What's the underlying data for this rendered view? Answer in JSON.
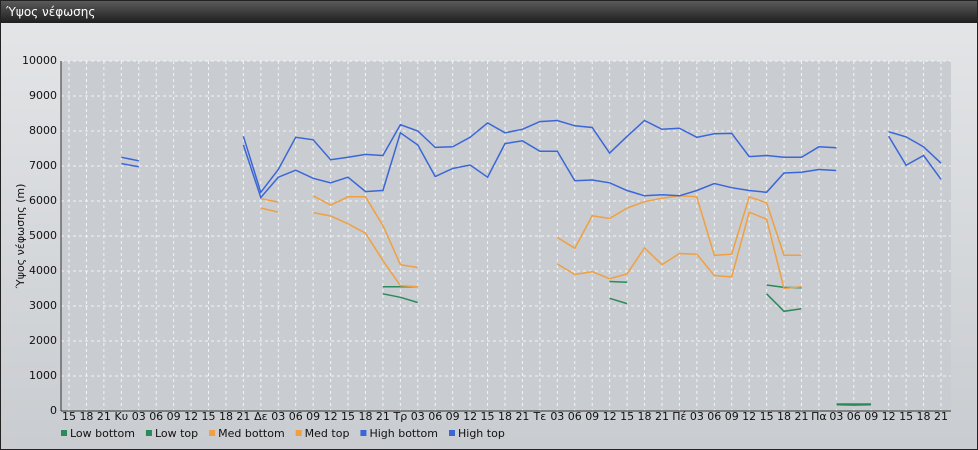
{
  "chart_data": {
    "type": "line",
    "title": "Ύψος νέφωσης",
    "y_label": "Ύψος νέφωσης (m)",
    "categories": [
      "15",
      "18",
      "21",
      "Κυ",
      "03",
      "06",
      "09",
      "12",
      "15",
      "18",
      "21",
      "Δε",
      "03",
      "06",
      "09",
      "12",
      "15",
      "18",
      "21",
      "Τρ",
      "03",
      "06",
      "09",
      "12",
      "15",
      "18",
      "21",
      "Τε",
      "03",
      "06",
      "09",
      "12",
      "15",
      "18",
      "21",
      "Πέ",
      "03",
      "06",
      "09",
      "12",
      "15",
      "18",
      "21",
      "Πα",
      "03",
      "06",
      "09",
      "12",
      "15",
      "18",
      "21"
    ],
    "ylim": [
      0,
      10000
    ],
    "yticks": [
      0,
      1000,
      2000,
      3000,
      4000,
      5000,
      6000,
      7000,
      8000,
      9000,
      10000
    ],
    "grid": true,
    "series": [
      {
        "name": "Low bottom",
        "color": "#2a8a5a",
        "values": [
          null,
          null,
          null,
          null,
          null,
          null,
          null,
          null,
          null,
          null,
          null,
          null,
          null,
          null,
          null,
          null,
          null,
          null,
          3350,
          3250,
          3100,
          null,
          null,
          null,
          null,
          null,
          null,
          null,
          null,
          null,
          null,
          3220,
          3070,
          null,
          null,
          null,
          null,
          null,
          null,
          null,
          3350,
          2850,
          2920,
          null,
          180,
          170,
          180,
          null,
          null,
          null,
          null
        ]
      },
      {
        "name": "Low top",
        "color": "#2a8a5a",
        "values": [
          null,
          null,
          null,
          null,
          null,
          null,
          null,
          null,
          null,
          null,
          null,
          null,
          null,
          null,
          null,
          null,
          null,
          null,
          3550,
          3550,
          3550,
          null,
          null,
          null,
          null,
          null,
          null,
          null,
          null,
          null,
          null,
          3700,
          3680,
          null,
          null,
          null,
          null,
          null,
          null,
          null,
          3600,
          3530,
          3520,
          null,
          200,
          200,
          200,
          null,
          null,
          null,
          null
        ]
      },
      {
        "name": "Med bottom",
        "color": "#f0a040",
        "values": [
          null,
          null,
          null,
          null,
          null,
          null,
          null,
          null,
          null,
          null,
          null,
          5800,
          5680,
          null,
          5670,
          5570,
          5350,
          5080,
          4300,
          3580,
          3550,
          null,
          null,
          null,
          null,
          null,
          null,
          null,
          4200,
          3900,
          3980,
          3780,
          3920,
          4660,
          4180,
          4500,
          4480,
          3870,
          3830,
          5680,
          5480,
          3500,
          3550,
          null,
          null,
          null,
          null,
          null,
          null,
          null,
          null
        ]
      },
      {
        "name": "Med top",
        "color": "#f0a040",
        "values": [
          null,
          null,
          null,
          null,
          null,
          null,
          null,
          null,
          null,
          null,
          null,
          6070,
          5970,
          null,
          6150,
          5880,
          6120,
          6120,
          5300,
          4180,
          4100,
          null,
          null,
          null,
          null,
          null,
          null,
          null,
          4960,
          4650,
          5580,
          5500,
          5800,
          5980,
          6080,
          6150,
          6120,
          4450,
          4480,
          6120,
          5950,
          4450,
          4450,
          null,
          null,
          null,
          null,
          null,
          null,
          null,
          null
        ]
      },
      {
        "name": "High bottom",
        "color": "#3a66d8",
        "values": [
          null,
          null,
          null,
          7070,
          6980,
          null,
          null,
          null,
          null,
          null,
          7600,
          6100,
          6680,
          6880,
          6650,
          6520,
          6680,
          6270,
          6300,
          7950,
          7600,
          6700,
          6930,
          7030,
          6680,
          7640,
          7720,
          7420,
          7420,
          6580,
          6600,
          6520,
          6300,
          6150,
          6180,
          6150,
          6300,
          6500,
          6380,
          6300,
          6250,
          6800,
          6820,
          6900,
          6870,
          null,
          null,
          7850,
          7020,
          7300,
          6620
        ]
      },
      {
        "name": "High top",
        "color": "#3a66d8",
        "values": [
          null,
          null,
          null,
          7250,
          7150,
          null,
          null,
          null,
          null,
          null,
          7850,
          6250,
          6900,
          7820,
          7750,
          7180,
          7250,
          7330,
          7300,
          8180,
          8000,
          7530,
          7550,
          7820,
          8230,
          7950,
          8050,
          8270,
          8300,
          8150,
          8100,
          7370,
          7850,
          8300,
          8050,
          8080,
          7820,
          7920,
          7930,
          7270,
          7300,
          7250,
          7250,
          7550,
          7520,
          null,
          null,
          7980,
          7830,
          7550,
          7080
        ]
      }
    ]
  }
}
